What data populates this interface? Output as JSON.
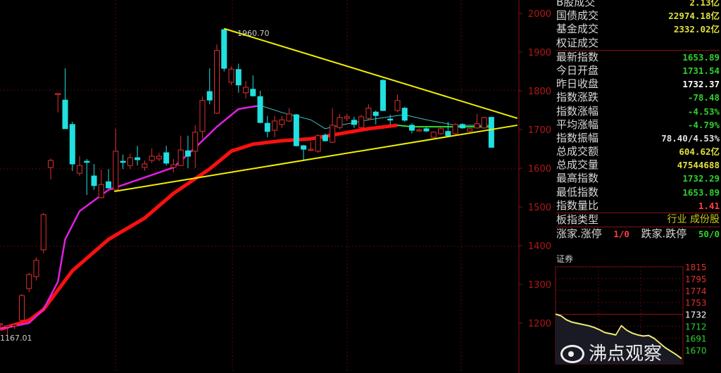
{
  "colors": {
    "up": "#e03030",
    "down": "#20e0e0",
    "trendline": "#f0f000",
    "ma_short": "#e020e0",
    "ma_long": "#ff1010",
    "axis": "#8a1010",
    "axis_label": "#b01818",
    "grid": "#5a0a0a"
  },
  "chart_data": {
    "type": "candlestick",
    "ylim": [
      1150,
      2040
    ],
    "yticks": [
      2000,
      1900,
      1800,
      1700,
      1600,
      1500,
      1400,
      1300,
      1200
    ],
    "grid": "dotted",
    "annotations": {
      "high_label": "1960.70",
      "low_label": "1167.01"
    },
    "candles_ohlc": [
      [
        1195,
        1200,
        1185,
        1198
      ],
      [
        1190,
        1195,
        1167,
        1193
      ],
      [
        1192,
        1198,
        1185,
        1196
      ],
      [
        1207,
        1275,
        1200,
        1271
      ],
      [
        1289,
        1330,
        1280,
        1325
      ],
      [
        1320,
        1370,
        1310,
        1362
      ],
      [
        1389,
        1485,
        1380,
        1480
      ],
      [
        1602,
        1625,
        1571,
        1620
      ],
      [
        1790,
        1795,
        1744,
        1793
      ],
      [
        1776,
        1858,
        1702,
        1702
      ],
      [
        1713,
        1720,
        1593,
        1611
      ],
      [
        1587,
        1631,
        1580,
        1607
      ],
      [
        1618,
        1624,
        1531,
        1615
      ],
      [
        1580,
        1611,
        1544,
        1555
      ],
      [
        1524,
        1596,
        1522,
        1558
      ],
      [
        1565,
        1598,
        1547,
        1549
      ],
      [
        1544,
        1702,
        1540,
        1644
      ],
      [
        1618,
        1635,
        1598,
        1615
      ],
      [
        1607,
        1638,
        1598,
        1627
      ],
      [
        1627,
        1658,
        1607,
        1622
      ],
      [
        1602,
        1620,
        1593,
        1611
      ],
      [
        1620,
        1651,
        1613,
        1631
      ],
      [
        1624,
        1640,
        1618,
        1631
      ],
      [
        1640,
        1658,
        1607,
        1613
      ],
      [
        1602,
        1624,
        1589,
        1609
      ],
      [
        1607,
        1684,
        1605,
        1647
      ],
      [
        1645,
        1684,
        1600,
        1631
      ],
      [
        1644,
        1711,
        1600,
        1693
      ],
      [
        1695,
        1785,
        1676,
        1775
      ],
      [
        1798,
        1858,
        1765,
        1776
      ],
      [
        1742,
        1920,
        1740,
        1904
      ],
      [
        1958,
        1960.7,
        1850,
        1858
      ],
      [
        1822,
        1863,
        1815,
        1856
      ],
      [
        1855,
        1870,
        1795,
        1815
      ],
      [
        1795,
        1825,
        1780,
        1809
      ],
      [
        1804,
        1840,
        1785,
        1787
      ],
      [
        1785,
        1800,
        1716,
        1718
      ],
      [
        1716,
        1735,
        1680,
        1695
      ],
      [
        1698,
        1735,
        1680,
        1722
      ],
      [
        1713,
        1735,
        1704,
        1725
      ],
      [
        1722,
        1755,
        1720,
        1740
      ],
      [
        1738,
        1740,
        1656,
        1658
      ],
      [
        1658,
        1660,
        1622,
        1649
      ],
      [
        1647,
        1668,
        1645,
        1649
      ],
      [
        1644,
        1688,
        1640,
        1684
      ],
      [
        1685,
        1690,
        1668,
        1671
      ],
      [
        1667,
        1755,
        1665,
        1711
      ],
      [
        1705,
        1740,
        1700,
        1731
      ],
      [
        1729,
        1740,
        1722,
        1733
      ],
      [
        1724,
        1733,
        1704,
        1713
      ],
      [
        1705,
        1738,
        1703,
        1733
      ],
      [
        1729,
        1765,
        1725,
        1755
      ],
      [
        1745,
        1749,
        1713,
        1736
      ],
      [
        1827,
        1830,
        1748,
        1749
      ],
      [
        1727,
        1738,
        1712,
        1725
      ],
      [
        1749,
        1790,
        1745,
        1775
      ],
      [
        1755,
        1758,
        1720,
        1724
      ],
      [
        1711,
        1716,
        1690,
        1698
      ],
      [
        1696,
        1703,
        1694,
        1699
      ],
      [
        1702,
        1705,
        1694,
        1696
      ],
      [
        1680,
        1695,
        1678,
        1693
      ],
      [
        1689,
        1705,
        1687,
        1702
      ],
      [
        1695,
        1720,
        1682,
        1684
      ],
      [
        1689,
        1716,
        1687,
        1713
      ],
      [
        1713,
        1716,
        1702,
        1704
      ],
      [
        1696,
        1704,
        1694,
        1702
      ],
      [
        1704,
        1740,
        1702,
        1715
      ],
      [
        1704,
        1733,
        1702,
        1731
      ],
      [
        1731.54,
        1732.29,
        1653.89,
        1653.89
      ]
    ],
    "ma_short": [
      [
        0,
        1185
      ],
      [
        4,
        1200
      ],
      [
        6,
        1235
      ],
      [
        8,
        1307
      ],
      [
        9,
        1416
      ],
      [
        11,
        1489
      ],
      [
        15,
        1544
      ],
      [
        20,
        1576
      ],
      [
        24,
        1602
      ],
      [
        27,
        1653
      ],
      [
        30,
        1707
      ],
      [
        33,
        1753
      ],
      [
        36,
        1762
      ],
      [
        39,
        1744
      ],
      [
        43,
        1725
      ],
      [
        45,
        1702
      ],
      [
        47,
        1711
      ],
      [
        51,
        1725
      ],
      [
        55,
        1736
      ],
      [
        56,
        1738
      ],
      [
        59,
        1725
      ],
      [
        63,
        1711
      ],
      [
        68,
        1711
      ]
    ],
    "ma_long": [
      [
        0,
        1184
      ],
      [
        4,
        1207
      ],
      [
        6,
        1235
      ],
      [
        10,
        1335
      ],
      [
        15,
        1416
      ],
      [
        20,
        1471
      ],
      [
        24,
        1535
      ],
      [
        29,
        1598
      ],
      [
        32,
        1644
      ],
      [
        35,
        1662
      ],
      [
        39,
        1671
      ],
      [
        43,
        1676
      ],
      [
        47,
        1689
      ],
      [
        51,
        1702
      ],
      [
        55,
        1711
      ],
      [
        57,
        1707
      ],
      [
        63,
        1707
      ],
      [
        68,
        1707
      ]
    ],
    "trendlines": [
      {
        "from": [
          31,
          1960.7
        ],
        "to": [
          71.6,
          1729
        ]
      },
      {
        "from": [
          15.8,
          1540
        ],
        "to": [
          71.6,
          1711
        ]
      }
    ]
  },
  "info": {
    "rows_top": [
      {
        "label": "B股成交",
        "value": "2.13亿",
        "color": "#e0e040"
      },
      {
        "label": "国债成交",
        "value": "22974.18亿",
        "color": "#e0e040"
      },
      {
        "label": "基金成交",
        "value": "2332.02亿",
        "color": "#e0e040"
      },
      {
        "label": "权证成交",
        "value": "",
        "color": "#e0e040"
      }
    ],
    "rows_main": [
      {
        "label": "最新指数",
        "value": "1653.89",
        "color": "#30d030"
      },
      {
        "label": "今日开盘",
        "value": "1731.54",
        "color": "#30d030"
      },
      {
        "label": "昨日收盘",
        "value": "1732.37",
        "color": "#ffffff"
      },
      {
        "label": "指数涨跌",
        "value": "-78.48",
        "color": "#30d030"
      },
      {
        "label": "指数涨幅",
        "value": "-4.53%",
        "color": "#30d030"
      },
      {
        "label": "平均涨幅",
        "value": "-4.79%",
        "color": "#30d030"
      },
      {
        "label": "指数振幅",
        "value": "78.40/4.53%",
        "color": "#e0e0e0"
      },
      {
        "label": "总成交额",
        "value": "604.62亿",
        "color": "#e0e040"
      },
      {
        "label": "总成交量",
        "value": "47544688",
        "color": "#e0e040"
      },
      {
        "label": "最高指数",
        "value": "1732.29",
        "color": "#30d030"
      },
      {
        "label": "最低指数",
        "value": "1653.89",
        "color": "#30d030"
      },
      {
        "label": "指数量比",
        "value": "1.41",
        "color": "#ff4040"
      }
    ],
    "type_label": "板指类型",
    "type_value": "行业 成份股",
    "up_label": "涨家.涨停",
    "up_value": "1/0",
    "down_label": "跌家.跌停",
    "down_value": "50/0"
  },
  "mini": {
    "title": "证券",
    "yticks": [
      {
        "v": "1815",
        "c": "#e03030"
      },
      {
        "v": "1795",
        "c": "#e03030"
      },
      {
        "v": "1774",
        "c": "#e03030"
      },
      {
        "v": "1753",
        "c": "#e03030"
      },
      {
        "v": "1732",
        "c": "#ffffff"
      },
      {
        "v": "1712",
        "c": "#30d030"
      },
      {
        "v": "1691",
        "c": "#30d030"
      },
      {
        "v": "1670",
        "c": "#30d030"
      }
    ],
    "prev_close": 1732,
    "series": [
      1732,
      1729,
      1722,
      1718,
      1716,
      1714,
      1712,
      1709,
      1705,
      1700,
      1698,
      1696,
      1712,
      1704,
      1699,
      1696,
      1694,
      1695,
      1690,
      1682,
      1674,
      1668,
      1662,
      1655
    ]
  },
  "watermark": "沸点观察"
}
